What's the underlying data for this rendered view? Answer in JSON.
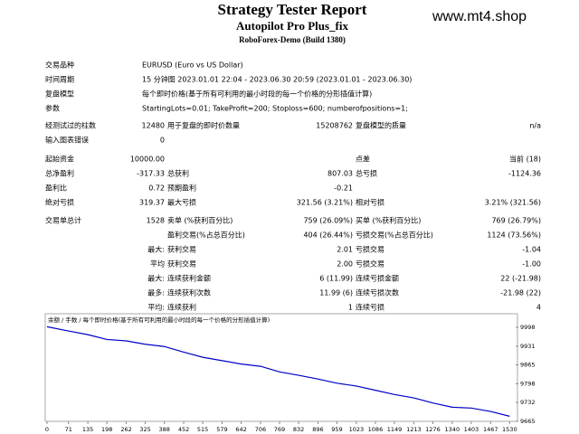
{
  "header": {
    "title": "Strategy Tester Report",
    "subtitle": "Autopilot Pro Plus_fix",
    "server": "RoboForex-Demo (Build 1380)",
    "watermark": "www.mt4.shop"
  },
  "info": [
    [
      "交易品种",
      "EURUSD (Euro vs US Dollar)"
    ],
    [
      "时间周期",
      "15 分钟图 2023.01.01 22:04 - 2023.06.30 20:59 (2023.01.01 - 2023.06.30)"
    ],
    [
      "复盘模型",
      "每个即时价格(基于所有可利用的最小时段的每一个价格的分形插值计算)"
    ],
    [
      "参数",
      "StartingLots=0.01; TakeProfit=200; Stoploss=600; numberofpositions=1;"
    ]
  ],
  "stats": [
    [
      [
        "经测试过的柱数",
        "12480",
        "用于复盘的即时价数量",
        "15208762",
        "复盘模型的质量",
        "n/a"
      ],
      [
        "输入图表错误",
        "0",
        null,
        null,
        null,
        null
      ]
    ],
    [
      [
        "起始资金",
        "10000.00",
        null,
        null,
        "点差",
        "当前 (18)"
      ],
      [
        "总净盈利",
        "-317.33",
        "总获利",
        "807.03",
        "总亏损",
        "-1124.36"
      ],
      [
        "盈利比",
        "0.72",
        "预期盈利",
        "-0.21",
        null,
        null
      ],
      [
        "绝对亏损",
        "319.37",
        "最大亏损",
        "321.56 (3.21%)",
        "相对亏损",
        "3.21% (321.56)"
      ]
    ],
    [
      [
        "交易单总计",
        "1528",
        "卖单 (%获利百分比)",
        "759 (26.09%)",
        "买单 (%获利百分比)",
        "769 (26.79%)"
      ],
      [
        null,
        null,
        "盈利交易(%占总百分比)",
        "404 (26.44%)",
        "亏损交易(%占总百分比)",
        "1124 (73.56%)"
      ],
      [
        null,
        "最大:",
        "获利交易",
        "2.01",
        "亏损交易",
        "-1.04"
      ],
      [
        null,
        "平均",
        "获利交易",
        "2.00",
        "亏损交易",
        "-1.00"
      ],
      [
        null,
        "最大:",
        "连续获利金额",
        "6 (11.99)",
        "连续亏损金额",
        "22 (-21.98)"
      ],
      [
        null,
        "最多:",
        "连续获利次数",
        "11.99 (6)",
        "连续亏损次数",
        "-21.98 (22)"
      ],
      [
        null,
        "平均:",
        "连续获利",
        "1",
        "连续亏损",
        "4"
      ]
    ]
  ],
  "chart_data": {
    "type": "line",
    "caption": "余额 / 手数 / 每个即时价格(基于所有可利用的最小时段的每一个价格的分形插值计算)",
    "x": [
      0,
      71,
      135,
      198,
      262,
      325,
      388,
      452,
      515,
      579,
      642,
      706,
      769,
      832,
      896,
      959,
      1023,
      1086,
      1149,
      1213,
      1276,
      1340,
      1403,
      1467,
      1530
    ],
    "series": [
      {
        "color": "#0000c8",
        "values": [
          10000,
          9985,
          9972,
          9955,
          9950,
          9938,
          9930,
          9910,
          9892,
          9880,
          9868,
          9860,
          9840,
          9828,
          9815,
          9800,
          9790,
          9775,
          9760,
          9748,
          9730,
          9715,
          9712,
          9700,
          9683
        ]
      }
    ],
    "xlim": [
      0,
      1550
    ],
    "ylim": [
      9665,
      10030
    ],
    "xticks": [
      0,
      71,
      135,
      198,
      262,
      325,
      388,
      452,
      515,
      579,
      642,
      706,
      769,
      832,
      896,
      959,
      1023,
      1086,
      1149,
      1213,
      1276,
      1340,
      1403,
      1467,
      1530
    ],
    "yticks": [
      9998,
      9931,
      9865,
      9798,
      9732,
      9665
    ]
  }
}
